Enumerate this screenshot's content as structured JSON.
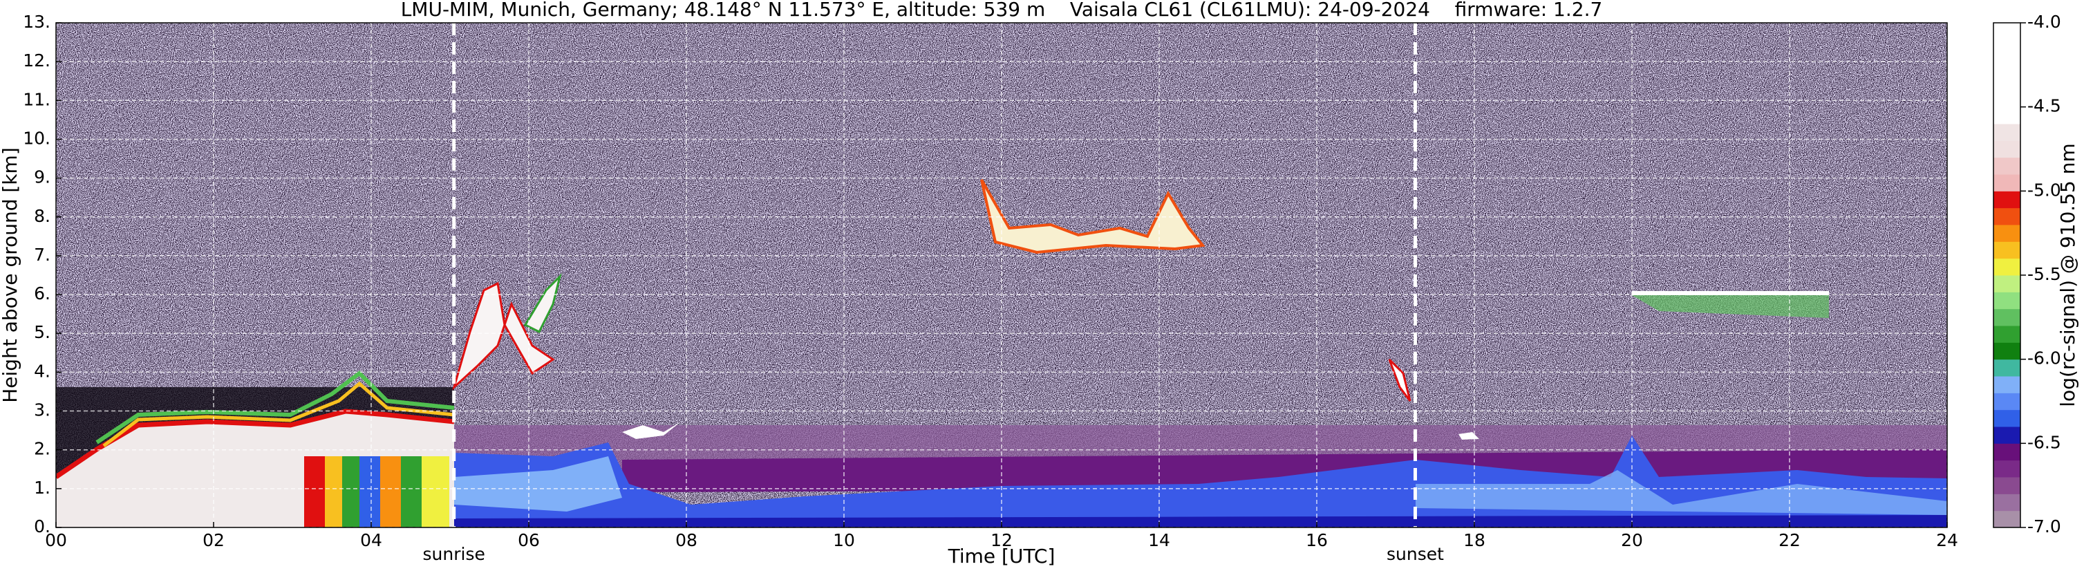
{
  "chart_data": {
    "type": "heatmap",
    "title": "LMU-MIM, Munich, Germany; 48.148° N 11.573° E, altitude: 539 m    Vaisala CL61 (CL61LMU): 24-09-2024    firmware: 1.2.7",
    "xlabel": "Time [UTC]",
    "ylabel": "Height above ground [km]",
    "xlim": [
      0,
      24
    ],
    "ylim": [
      0,
      13
    ],
    "xticks": [
      {
        "value": 0,
        "label": "00"
      },
      {
        "value": 2,
        "label": "02"
      },
      {
        "value": 4,
        "label": "04"
      },
      {
        "value": 6,
        "label": "06"
      },
      {
        "value": 8,
        "label": "08"
      },
      10,
      12,
      14,
      16,
      18,
      20,
      22,
      24
    ],
    "yticks": [
      {
        "value": 0,
        "label": "0."
      },
      {
        "value": 1,
        "label": "1."
      },
      {
        "value": 2,
        "label": "2."
      },
      {
        "value": 3,
        "label": "3."
      },
      {
        "value": 4,
        "label": "4."
      },
      {
        "value": 5,
        "label": "5."
      },
      {
        "value": 6,
        "label": "6."
      },
      {
        "value": 7,
        "label": "7."
      },
      {
        "value": 8,
        "label": "8."
      },
      {
        "value": 9,
        "label": "9."
      },
      {
        "value": 10,
        "label": "10."
      },
      {
        "value": 11,
        "label": "11."
      },
      {
        "value": 12,
        "label": "12."
      },
      {
        "value": 13,
        "label": "13."
      }
    ],
    "grid": true,
    "annotations": [
      {
        "text": "sunrise",
        "x": 5.05
      },
      {
        "text": "sunset",
        "x": 17.25
      }
    ],
    "colorbar": {
      "label": "log(rc-signal) @ 910.55 nm",
      "clim": [
        -7,
        -4
      ],
      "ticks": [
        {
          "value": -7,
          "label": "-7.0"
        },
        {
          "value": -6.5,
          "label": "-6.5"
        },
        {
          "value": -6,
          "label": "-6.0"
        },
        {
          "value": -5.5,
          "label": "-5.5"
        },
        {
          "value": -5,
          "label": "-5.0"
        },
        {
          "value": -4.5,
          "label": "-4.5"
        },
        {
          "value": -4,
          "label": "-4.0"
        }
      ],
      "colors": [
        "#a890a8",
        "#9a70a0",
        "#8a4a90",
        "#7a2a88",
        "#68107a",
        "#1a1ab0",
        "#3060e8",
        "#5a88f5",
        "#80b0f8",
        "#40b8a0",
        "#108010",
        "#30a030",
        "#60c060",
        "#90e080",
        "#c0f080",
        "#f0f040",
        "#f8c020",
        "#f89010",
        "#f05010",
        "#e01010",
        "#f0b8b8",
        "#f0c8c8",
        "#f0e0e0",
        "#f0e4e4",
        "#ffffff",
        "#ffffff",
        "#ffffff",
        "#ffffff",
        "#ffffff",
        "#ffffff"
      ]
    }
  }
}
